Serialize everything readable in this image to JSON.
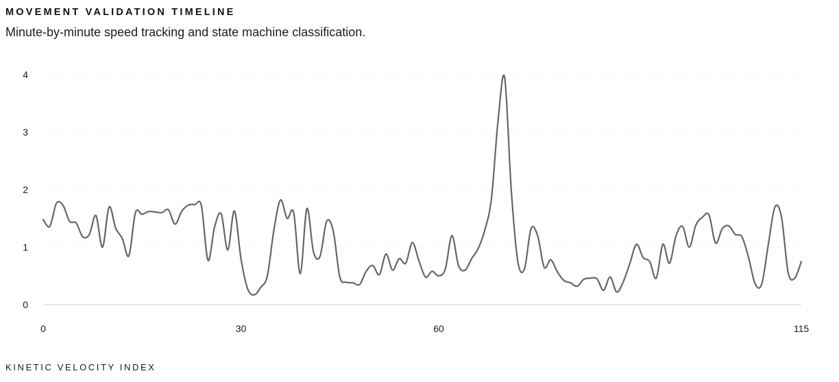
{
  "header": {
    "title": "MOVEMENT VALIDATION TIMELINE",
    "subtitle": "Minute-by-minute speed tracking and state machine classification."
  },
  "footer": {
    "label": "KINETIC VELOCITY INDEX"
  },
  "colors": {
    "line": "#5f6670",
    "grid": "#eef0f2",
    "axis": "#d6d9dd",
    "text": "#1a1a1a"
  },
  "chart_data": {
    "type": "line",
    "title": "MOVEMENT VALIDATION TIMELINE",
    "subtitle": "Minute-by-minute speed tracking and state machine classification.",
    "xlabel": "",
    "ylabel": "",
    "xlim": [
      0,
      115
    ],
    "ylim": [
      0,
      4
    ],
    "x_ticks": [
      0,
      30,
      60,
      115
    ],
    "y_ticks": [
      0,
      1,
      2,
      3,
      4
    ],
    "grid": "horizontal-dashed",
    "legend": "none",
    "series": [
      {
        "x": [
          0,
          1,
          2,
          3,
          4,
          5,
          6,
          7,
          8,
          9,
          10,
          11,
          12,
          13,
          14,
          15,
          16,
          17,
          18,
          19,
          20,
          21,
          22,
          23,
          24,
          25,
          26,
          27,
          28,
          29,
          30,
          31,
          32,
          33,
          34,
          35,
          36,
          37,
          38,
          39,
          40,
          41,
          42,
          43,
          44,
          45,
          46,
          47,
          48,
          49,
          50,
          51,
          52,
          53,
          54,
          55,
          56,
          57,
          58,
          59,
          60,
          61,
          62,
          63,
          64,
          65,
          66,
          67,
          68,
          69,
          70,
          71,
          72,
          73,
          74,
          75,
          76,
          77,
          78,
          79,
          80,
          81,
          82,
          83,
          84,
          85,
          86,
          87,
          88,
          89,
          90,
          91,
          92,
          93,
          94,
          95,
          96,
          97,
          98,
          99,
          100,
          101,
          102,
          103,
          104,
          105,
          106,
          107,
          108,
          109,
          110,
          111,
          112,
          113,
          114,
          115
        ],
        "values": [
          1.48,
          1.36,
          1.76,
          1.73,
          1.45,
          1.42,
          1.18,
          1.22,
          1.55,
          1.0,
          1.7,
          1.33,
          1.15,
          0.85,
          1.6,
          1.57,
          1.62,
          1.61,
          1.6,
          1.65,
          1.4,
          1.62,
          1.73,
          1.74,
          1.72,
          0.77,
          1.35,
          1.58,
          0.95,
          1.63,
          0.8,
          0.28,
          0.17,
          0.3,
          0.5,
          1.3,
          1.82,
          1.5,
          1.6,
          0.54,
          1.67,
          0.92,
          0.84,
          1.45,
          1.28,
          0.48,
          0.39,
          0.38,
          0.35,
          0.58,
          0.68,
          0.52,
          0.88,
          0.6,
          0.8,
          0.72,
          1.08,
          0.76,
          0.48,
          0.58,
          0.5,
          0.62,
          1.2,
          0.68,
          0.6,
          0.8,
          0.98,
          1.3,
          1.85,
          3.2,
          3.95,
          2.0,
          0.75,
          0.62,
          1.32,
          1.2,
          0.65,
          0.78,
          0.57,
          0.42,
          0.38,
          0.32,
          0.44,
          0.46,
          0.45,
          0.25,
          0.48,
          0.22,
          0.4,
          0.72,
          1.05,
          0.82,
          0.75,
          0.46,
          1.05,
          0.72,
          1.2,
          1.36,
          1.0,
          1.38,
          1.52,
          1.56,
          1.07,
          1.32,
          1.37,
          1.22,
          1.18,
          0.82,
          0.36,
          0.36,
          1.05,
          1.7,
          1.52,
          0.56,
          0.46,
          0.75
        ]
      }
    ]
  }
}
